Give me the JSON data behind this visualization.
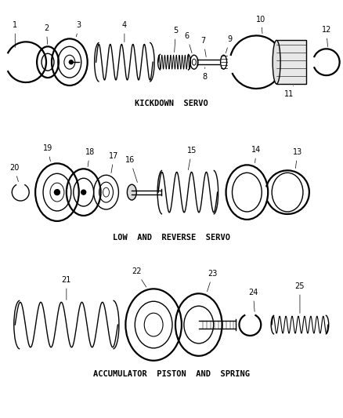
{
  "title": "ACCUMULATOR PISTON AND SPRING",
  "section1_label": "KICKDOWN  SERVO",
  "section2_label": "LOW  AND  REVERSE  SERVO",
  "section3_label": "ACCUMULATOR  PISTON  AND  SPRING",
  "bg_color": "#ffffff",
  "line_color": "#000000",
  "gray_color": "#888888",
  "light_gray": "#cccccc",
  "figsize": [
    4.38,
    5.33
  ],
  "dpi": 100
}
